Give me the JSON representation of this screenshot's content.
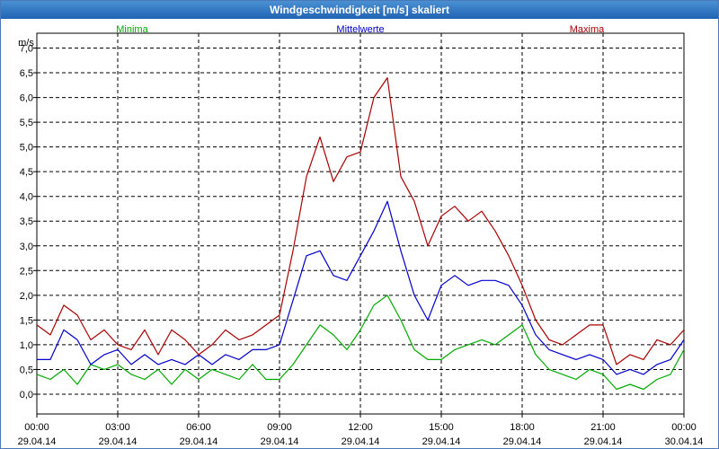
{
  "window": {
    "title": "Windgeschwindigkeit [m/s] skaliert"
  },
  "chart_data": {
    "type": "line",
    "title": "Windgeschwindigkeit [m/s] skaliert",
    "ylabel": "m/s",
    "xlabel": "",
    "ylim": [
      -0.4,
      7.3
    ],
    "xlim": [
      0,
      24
    ],
    "grid": true,
    "yticks": [
      {
        "value": 0,
        "label": "0,0"
      },
      {
        "value": 0.5,
        "label": "0,5"
      },
      {
        "value": 1,
        "label": "1,0"
      },
      {
        "value": 1.5,
        "label": "1,5"
      },
      {
        "value": 2,
        "label": "2,0"
      },
      {
        "value": 2.5,
        "label": "2,5"
      },
      {
        "value": 3,
        "label": "3,0"
      },
      {
        "value": 3.5,
        "label": "3,5"
      },
      {
        "value": 4,
        "label": "4,0"
      },
      {
        "value": 4.5,
        "label": "4,5"
      },
      {
        "value": 5,
        "label": "5,0"
      },
      {
        "value": 5.5,
        "label": "5,5"
      },
      {
        "value": 6,
        "label": "6,0"
      },
      {
        "value": 6.5,
        "label": "6,5"
      },
      {
        "value": 7,
        "label": "7,0"
      }
    ],
    "xticks": [
      {
        "hour": 0,
        "time": "00:00",
        "date": "29.04.14"
      },
      {
        "hour": 3,
        "time": "03:00",
        "date": "29.04.14"
      },
      {
        "hour": 6,
        "time": "06:00",
        "date": "29.04.14"
      },
      {
        "hour": 9,
        "time": "09:00",
        "date": "29.04.14"
      },
      {
        "hour": 12,
        "time": "12:00",
        "date": "29.04.14"
      },
      {
        "hour": 15,
        "time": "15:00",
        "date": "29.04.14"
      },
      {
        "hour": 18,
        "time": "18:00",
        "date": "29.04.14"
      },
      {
        "hour": 21,
        "time": "21:00",
        "date": "29.04.14"
      },
      {
        "hour": 24,
        "time": "00:00",
        "date": "30.04.14"
      }
    ],
    "x": [
      0,
      0.5,
      1,
      1.5,
      2,
      2.5,
      3,
      3.5,
      4,
      4.5,
      5,
      5.5,
      6,
      6.5,
      7,
      7.5,
      8,
      8.5,
      9,
      9.5,
      10,
      10.5,
      11,
      11.5,
      12,
      12.5,
      13,
      13.5,
      14,
      14.5,
      15,
      15.5,
      16,
      16.5,
      17,
      17.5,
      18,
      18.5,
      19,
      19.5,
      20,
      20.5,
      21,
      21.5,
      22,
      22.5,
      23,
      23.5,
      24
    ],
    "series": [
      {
        "name": "Minima",
        "color": "#00aa00",
        "values": [
          0.4,
          0.3,
          0.5,
          0.2,
          0.6,
          0.5,
          0.6,
          0.4,
          0.3,
          0.5,
          0.2,
          0.5,
          0.3,
          0.5,
          0.4,
          0.3,
          0.6,
          0.3,
          0.3,
          0.6,
          1.0,
          1.4,
          1.2,
          0.9,
          1.3,
          1.8,
          2.0,
          1.5,
          0.9,
          0.7,
          0.7,
          0.9,
          1.0,
          1.1,
          1.0,
          1.2,
          1.4,
          0.8,
          0.5,
          0.4,
          0.3,
          0.5,
          0.4,
          0.1,
          0.2,
          0.1,
          0.3,
          0.4,
          0.9
        ]
      },
      {
        "name": "Mittelwerte",
        "color": "#0000cc",
        "values": [
          0.7,
          0.7,
          1.3,
          1.1,
          0.6,
          0.8,
          0.9,
          0.6,
          0.8,
          0.6,
          0.7,
          0.6,
          0.8,
          0.6,
          0.8,
          0.7,
          0.9,
          0.9,
          1.0,
          1.9,
          2.8,
          2.9,
          2.4,
          2.3,
          2.8,
          3.3,
          3.9,
          2.9,
          2.0,
          1.5,
          2.2,
          2.4,
          2.2,
          2.3,
          2.3,
          2.2,
          1.8,
          1.2,
          0.9,
          0.8,
          0.7,
          0.8,
          0.7,
          0.4,
          0.5,
          0.4,
          0.6,
          0.7,
          1.1
        ]
      },
      {
        "name": "Maxima",
        "color": "#aa0000",
        "values": [
          1.4,
          1.2,
          1.8,
          1.6,
          1.1,
          1.3,
          1.0,
          0.9,
          1.3,
          0.8,
          1.3,
          1.1,
          0.8,
          1.0,
          1.3,
          1.1,
          1.2,
          1.4,
          1.6,
          2.9,
          4.4,
          5.2,
          4.3,
          4.8,
          4.9,
          6.0,
          6.4,
          4.4,
          3.9,
          3.0,
          3.6,
          3.8,
          3.5,
          3.7,
          3.3,
          2.8,
          2.2,
          1.5,
          1.1,
          1.0,
          1.2,
          1.4,
          1.4,
          0.6,
          0.8,
          0.7,
          1.1,
          1.0,
          1.3
        ]
      }
    ]
  }
}
